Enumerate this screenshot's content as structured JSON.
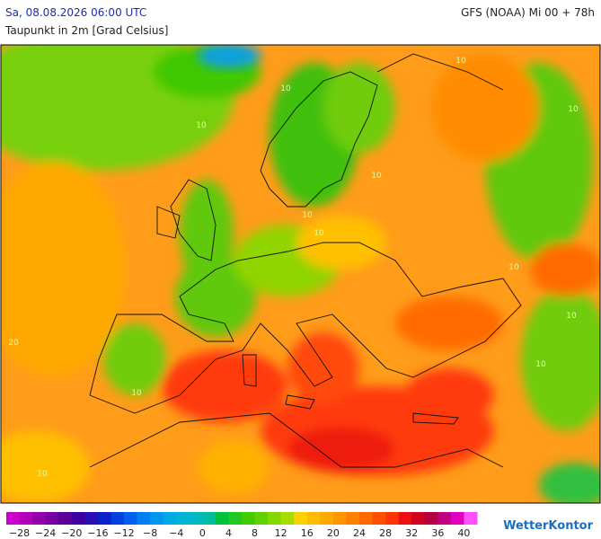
{
  "header": {
    "datetime": "Sa, 08.08.2026 06:00 UTC",
    "model": "GFS (NOAA) Mi 00 + 78h",
    "parameter": "Taupunkt in 2m [Grad Celsius]"
  },
  "map": {
    "contour_labels": [
      "10",
      "10",
      "10",
      "10",
      "10",
      "10",
      "10",
      "10",
      "10",
      "10",
      "10",
      "10",
      "20"
    ]
  },
  "legend": {
    "labels": [
      "−28",
      "−24",
      "−20",
      "−16",
      "−12",
      "−8",
      "−4",
      "0",
      "4",
      "8",
      "12",
      "16",
      "20",
      "24",
      "28",
      "32",
      "36",
      "40"
    ],
    "colors": [
      "#cc00cc",
      "#b000b8",
      "#9400aa",
      "#7800a0",
      "#5c009a",
      "#4000a0",
      "#2410b4",
      "#0a20cc",
      "#0040e0",
      "#0060ec",
      "#0080f0",
      "#0096f0",
      "#00a8e6",
      "#00b4d6",
      "#00b8c0",
      "#00bca0",
      "#00c040",
      "#20c820",
      "#40cc00",
      "#60d200",
      "#84d800",
      "#a8dc00",
      "#ffd000",
      "#ffbc00",
      "#ffa800",
      "#ff9400",
      "#ff8000",
      "#ff6a00",
      "#ff5000",
      "#ff3400",
      "#ee1010",
      "#d00020",
      "#b00040",
      "#c00080",
      "#e000c0",
      "#ff50ff"
    ]
  },
  "brand": "WetterKontor"
}
